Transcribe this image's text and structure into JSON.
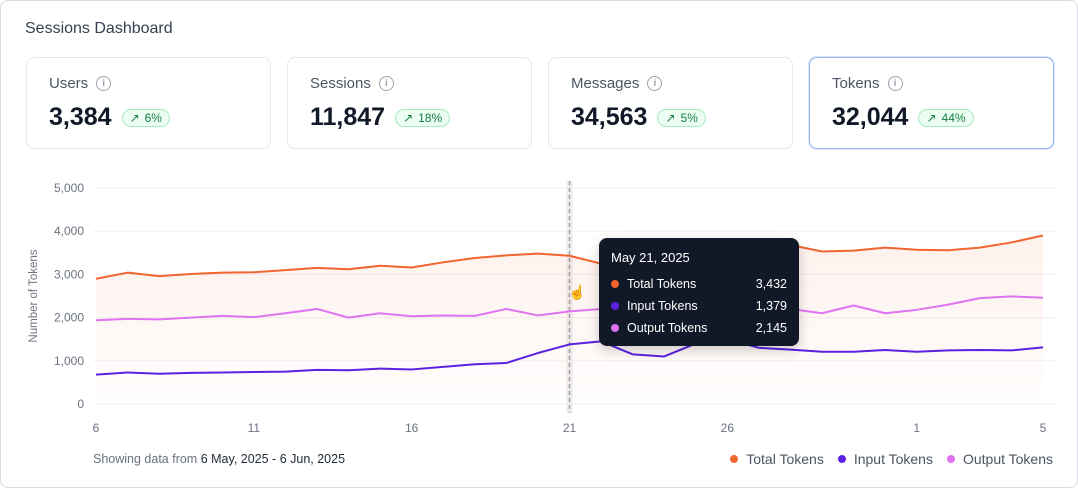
{
  "title": "Sessions Dashboard",
  "cards": [
    {
      "label": "Users",
      "value": "3,384",
      "change": "6%"
    },
    {
      "label": "Sessions",
      "value": "11,847",
      "change": "18%"
    },
    {
      "label": "Messages",
      "value": "34,563",
      "change": "5%"
    },
    {
      "label": "Tokens",
      "value": "32,044",
      "change": "44%",
      "selected": true
    }
  ],
  "colors": {
    "total": "#f26430",
    "input": "#5b21e0",
    "output": "#df73f0",
    "badge": "#15803d",
    "selected_border": "#93b4ef"
  },
  "tooltip": {
    "date": "May 21, 2025",
    "rows": [
      {
        "label": "Total Tokens",
        "value": "3,432"
      },
      {
        "label": "Input Tokens",
        "value": "1,379"
      },
      {
        "label": "Output Tokens",
        "value": "2,145"
      }
    ]
  },
  "footer": {
    "prefix": "Showing data from",
    "range": "6 May, 2025 - 6 Jun, 2025"
  },
  "chart_data": {
    "type": "line",
    "ylabel": "Number of Tokens",
    "ylim": [
      0,
      5000
    ],
    "yticks": [
      "0",
      "1,000",
      "2,000",
      "3,000",
      "4,000",
      "5,000"
    ],
    "xticks": [
      {
        "label": "6",
        "date": "2025-05-06"
      },
      {
        "label": "11",
        "date": "2025-05-11"
      },
      {
        "label": "16",
        "date": "2025-05-16"
      },
      {
        "label": "21",
        "date": "2025-05-21"
      },
      {
        "label": "26",
        "date": "2025-05-26"
      },
      {
        "label": "1",
        "date": "2025-06-01"
      },
      {
        "label": "5",
        "date": "2025-06-05"
      }
    ],
    "x": [
      "2025-05-06",
      "2025-05-07",
      "2025-05-08",
      "2025-05-09",
      "2025-05-10",
      "2025-05-11",
      "2025-05-12",
      "2025-05-13",
      "2025-05-14",
      "2025-05-15",
      "2025-05-16",
      "2025-05-17",
      "2025-05-18",
      "2025-05-19",
      "2025-05-20",
      "2025-05-21",
      "2025-05-22",
      "2025-05-23",
      "2025-05-24",
      "2025-05-25",
      "2025-05-26",
      "2025-05-27",
      "2025-05-28",
      "2025-05-29",
      "2025-05-30",
      "2025-05-31",
      "2025-06-01",
      "2025-06-02",
      "2025-06-03",
      "2025-06-04",
      "2025-06-05"
    ],
    "series": [
      {
        "name": "Total Tokens",
        "values": [
          2900,
          3040,
          2960,
          3010,
          3040,
          3050,
          3100,
          3150,
          3120,
          3200,
          3160,
          3280,
          3380,
          3440,
          3480,
          3432,
          3250,
          3150,
          3300,
          3500,
          3650,
          3700,
          3680,
          3530,
          3550,
          3620,
          3570,
          3560,
          3620,
          3740,
          3900
        ],
        "area": true
      },
      {
        "name": "Input Tokens",
        "values": [
          680,
          730,
          700,
          720,
          730,
          740,
          750,
          790,
          780,
          820,
          800,
          860,
          920,
          950,
          1180,
          1379,
          1450,
          1150,
          1100,
          1400,
          1500,
          1300,
          1260,
          1210,
          1210,
          1250,
          1210,
          1240,
          1250,
          1240,
          1310
        ]
      },
      {
        "name": "Output Tokens",
        "values": [
          1940,
          1970,
          1960,
          2000,
          2040,
          2010,
          2100,
          2200,
          2000,
          2100,
          2030,
          2050,
          2040,
          2200,
          2050,
          2145,
          2200,
          2150,
          2100,
          2150,
          2150,
          2130,
          2200,
          2100,
          2280,
          2100,
          2180,
          2300,
          2450,
          2490,
          2460
        ]
      }
    ],
    "hover_date": "2025-05-21",
    "grid": true,
    "legend": "bottom-right"
  }
}
